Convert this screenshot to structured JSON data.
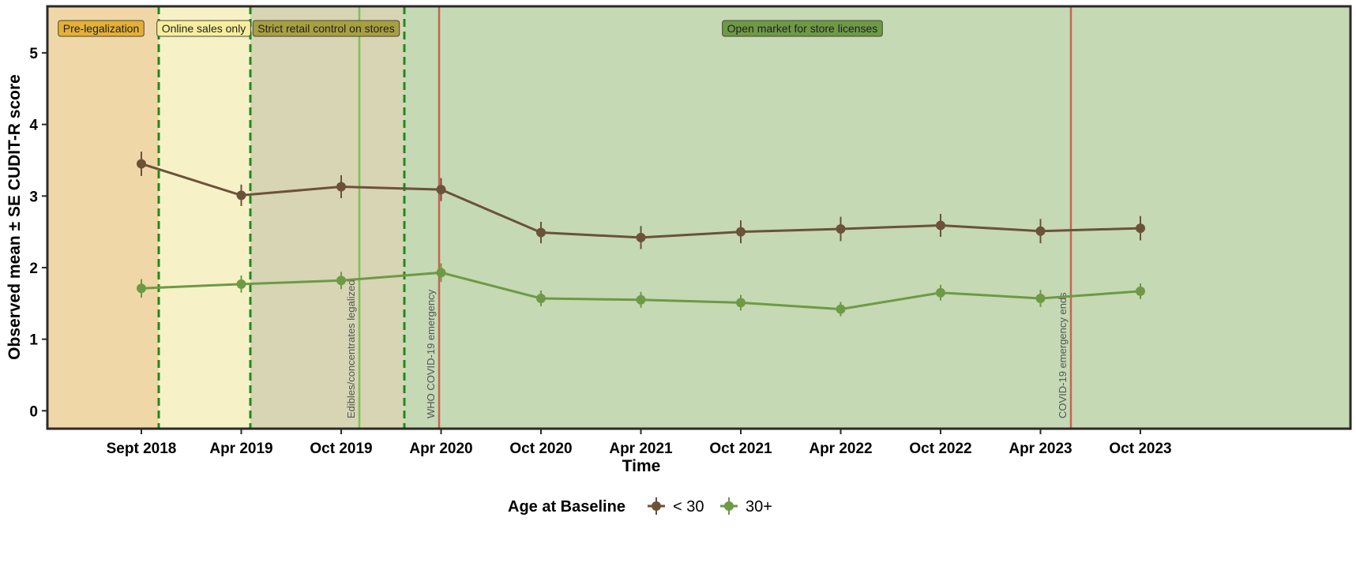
{
  "chart_data": {
    "type": "line",
    "title": "",
    "xlabel": "Time",
    "ylabel": "Observed mean ± SE CUDIT-R score",
    "ylim": [
      -0.25,
      5.65
    ],
    "yticks": [
      0,
      1,
      2,
      3,
      4,
      5
    ],
    "x_tick_labels": [
      "Sept 2018",
      "Apr 2019",
      "Oct 2019",
      "Apr 2020",
      "Oct 2020",
      "Apr 2021",
      "Oct 2021",
      "Apr 2022",
      "Oct 2022",
      "Apr 2023",
      "Oct 2023"
    ],
    "series": [
      {
        "name": "< 30",
        "color": "#6b5239",
        "values": [
          3.45,
          3.01,
          3.13,
          3.09,
          2.49,
          2.42,
          2.5,
          2.54,
          2.59,
          2.51,
          2.55
        ],
        "se": [
          0.17,
          0.15,
          0.16,
          0.16,
          0.15,
          0.16,
          0.16,
          0.17,
          0.16,
          0.17,
          0.17
        ]
      },
      {
        "name": "30+",
        "color": "#6e9a45",
        "values": [
          1.71,
          1.77,
          1.82,
          1.93,
          1.57,
          1.55,
          1.51,
          1.42,
          1.65,
          1.57,
          1.67
        ],
        "se": [
          0.13,
          0.12,
          0.12,
          0.13,
          0.11,
          0.11,
          0.11,
          0.1,
          0.11,
          0.12,
          0.11
        ]
      }
    ],
    "periods": [
      {
        "label": "Pre-legalization",
        "start": -0.9,
        "end": -0.5,
        "fill": "#f0d7a7",
        "label_fill": "#e5b035"
      },
      {
        "label": "Online sales only",
        "start": -0.5,
        "end": 0.95,
        "fill": "#f7f1c7",
        "label_fill": "#f7ee9c"
      },
      {
        "label": "Strict retail control on stores",
        "start": 0.95,
        "end": 1.4,
        "fill": "#d7d5b4",
        "label_fill": "#a7a040"
      },
      {
        "label": "Open market for store licenses",
        "start": 1.4,
        "end": 10.75,
        "fill": "#c5d9b4",
        "label_fill": "#6e9a45"
      }
    ],
    "period_boundaries_note": "dashed green lines",
    "period_boundaries": [
      0.18,
      1.1,
      1.55
    ],
    "events": [
      {
        "label": "Edibles/concentrates legalized",
        "x": 2.0,
        "color": "#7fbf5a"
      },
      {
        "label": "WHO COVID-19 emergency",
        "x": 2.8,
        "color": "#c86450"
      },
      {
        "label": "COVID-19 emergency ends",
        "x": 9.9,
        "color": "#c86450"
      }
    ],
    "legend": {
      "title": "Age at Baseline",
      "position": "bottom"
    }
  }
}
